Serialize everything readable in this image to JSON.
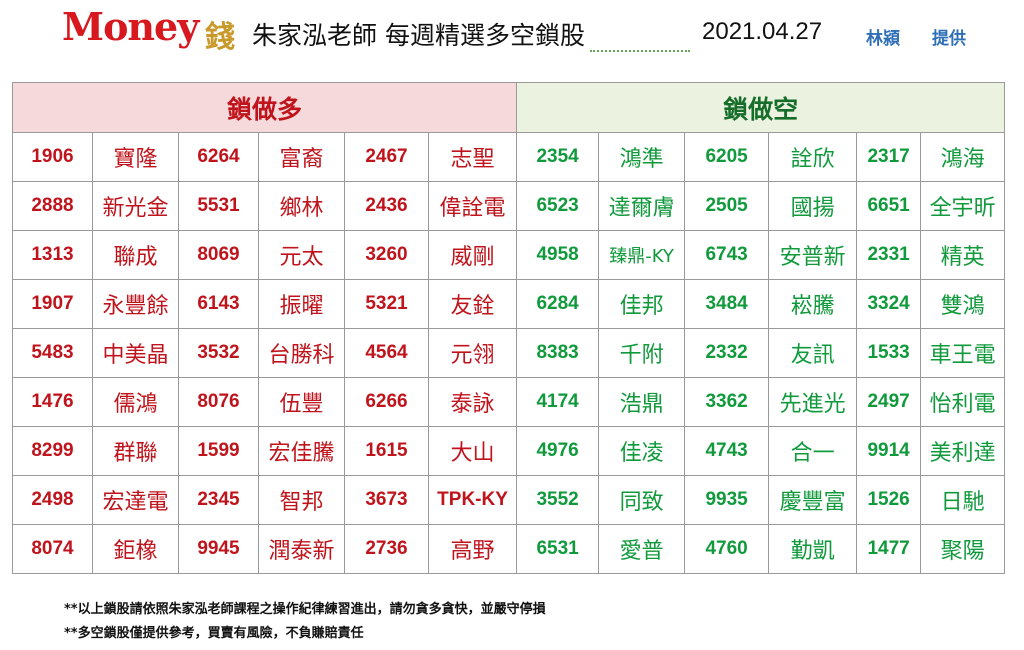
{
  "header": {
    "logo_text": "Money",
    "logo_char": "錢",
    "title": "朱家泓老師  每週精選多空鎖股",
    "date": "2021.04.27",
    "credit_name": "林潁",
    "credit_label": "提供"
  },
  "table": {
    "long_header": "鎖做多",
    "short_header": "鎖做空",
    "rows": [
      {
        "long": [
          [
            "1906",
            "寶隆"
          ],
          [
            "6264",
            "富裔"
          ],
          [
            "2467",
            "志聖"
          ]
        ],
        "short": [
          [
            "2354",
            "鴻準"
          ],
          [
            "6205",
            "詮欣"
          ],
          [
            "2317",
            "鴻海"
          ]
        ]
      },
      {
        "long": [
          [
            "2888",
            "新光金"
          ],
          [
            "5531",
            "鄉林"
          ],
          [
            "2436",
            "偉詮電"
          ]
        ],
        "short": [
          [
            "6523",
            "達爾膚"
          ],
          [
            "2505",
            "國揚"
          ],
          [
            "6651",
            "全宇昕"
          ]
        ]
      },
      {
        "long": [
          [
            "1313",
            "聯成"
          ],
          [
            "8069",
            "元太"
          ],
          [
            "3260",
            "威剛"
          ]
        ],
        "short": [
          [
            "4958",
            "臻鼎-KY"
          ],
          [
            "6743",
            "安普新"
          ],
          [
            "2331",
            "精英"
          ]
        ]
      },
      {
        "long": [
          [
            "1907",
            "永豐餘"
          ],
          [
            "6143",
            "振曜"
          ],
          [
            "5321",
            "友銓"
          ]
        ],
        "short": [
          [
            "6284",
            "佳邦"
          ],
          [
            "3484",
            "崧騰"
          ],
          [
            "3324",
            "雙鴻"
          ]
        ]
      },
      {
        "long": [
          [
            "5483",
            "中美晶"
          ],
          [
            "3532",
            "台勝科"
          ],
          [
            "4564",
            "元翎"
          ]
        ],
        "short": [
          [
            "8383",
            "千附"
          ],
          [
            "2332",
            "友訊"
          ],
          [
            "1533",
            "車王電"
          ]
        ]
      },
      {
        "long": [
          [
            "1476",
            "儒鴻"
          ],
          [
            "8076",
            "伍豐"
          ],
          [
            "6266",
            "泰詠"
          ]
        ],
        "short": [
          [
            "4174",
            "浩鼎"
          ],
          [
            "3362",
            "先進光"
          ],
          [
            "2497",
            "怡利電"
          ]
        ]
      },
      {
        "long": [
          [
            "8299",
            "群聯"
          ],
          [
            "1599",
            "宏佳騰"
          ],
          [
            "1615",
            "大山"
          ]
        ],
        "short": [
          [
            "4976",
            "佳凌"
          ],
          [
            "4743",
            "合一"
          ],
          [
            "9914",
            "美利達"
          ]
        ]
      },
      {
        "long": [
          [
            "2498",
            "宏達電"
          ],
          [
            "2345",
            "智邦"
          ],
          [
            "3673",
            "TPK-KY"
          ]
        ],
        "short": [
          [
            "3552",
            "同致"
          ],
          [
            "9935",
            "慶豐富"
          ],
          [
            "1526",
            "日馳"
          ]
        ]
      },
      {
        "long": [
          [
            "8074",
            "鉅橡"
          ],
          [
            "9945",
            "潤泰新"
          ],
          [
            "2736",
            "高野"
          ]
        ],
        "short": [
          [
            "6531",
            "愛普"
          ],
          [
            "4760",
            "勤凱"
          ],
          [
            "1477",
            "聚陽"
          ]
        ]
      }
    ]
  },
  "notes": [
    "**以上鎖股請依照朱家泓老師課程之操作紀律練習進出，請勿貪多貪快，並嚴守停損",
    "**多空鎖股僅提供參考，買賣有風險，不負賺賠責任"
  ],
  "colors": {
    "long_text": "#c0141c",
    "short_text": "#119a3c",
    "long_header_bg": "#f6d9da",
    "short_header_bg": "#ebf2df"
  }
}
